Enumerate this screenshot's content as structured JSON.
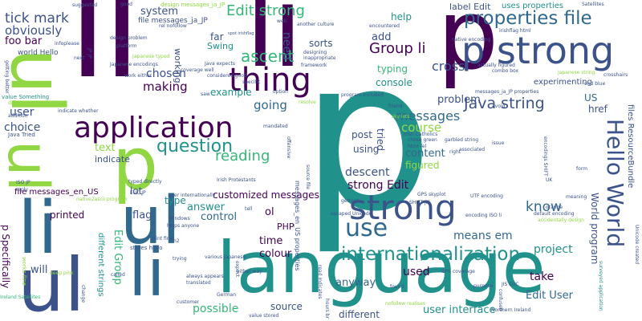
{
  "palette": {
    "background": "#ffffff",
    "dark_purple": "#440154",
    "indigo": "#3b528b",
    "blue": "#31688e",
    "teal": "#21918c",
    "green": "#35b779",
    "lime": "#90d743",
    "yellow": "#fde725"
  },
  "words": {
    "p_big": "p",
    "p_big2": "p",
    "li_top": "li",
    "li_top2": "li",
    "ul_left": "ul",
    "ul_bottom": "ul",
    "li_bottom": "li",
    "li_bottom2": "li",
    "language": "language",
    "application": "application",
    "p_mid": "p",
    "ul_mid": "ul",
    "thing": "thing",
    "strong": "strong",
    "p_strong": "p strong",
    "internationalization": "internationalization",
    "properties_file": "properties file",
    "use": "use",
    "question": "question",
    "edit_strong": "Edit strong",
    "hello_world": "Hello World",
    "ascent": "ascent",
    "group_li": "Group li",
    "java_string": "Java string",
    "reading": "reading",
    "tick_mark": "tick mark",
    "obviously": "obviously",
    "foo_bar": "foo bar",
    "world_hello": "world Hello",
    "user": "user",
    "choice": "choice",
    "making": "making",
    "going": "going",
    "example": "example",
    "chosen": "chosen",
    "system": "system",
    "messages": "messages",
    "course": "course",
    "know": "know",
    "strong_edit": "strong Edit",
    "descent": "descent",
    "means_em": "means em",
    "customized_messages": "customized messages",
    "answer": "answer",
    "control": "control",
    "time": "time",
    "colour": "colour",
    "possible": "possible",
    "source": "source",
    "different": "different",
    "user_interface": "user interface",
    "edit_user": "Edit User",
    "take": "take",
    "project": "project",
    "anyway": "anyway",
    "used": "used",
    "content": "content",
    "figured": "figured",
    "problem": "problem",
    "console": "console",
    "typing": "typing",
    "cross": "cross",
    "add": "add",
    "help": "help",
    "need": "need",
    "sorts": "sorts",
    "far": "far",
    "swing": "Swing",
    "label_edit": "label Edit",
    "uses_properties": "uses properties",
    "experimenting": "experimenting",
    "us": "US",
    "href": "href",
    "text": "text",
    "indicate": "indicate",
    "flag": "flag",
    "lot": "lot",
    "type": "type",
    "ol": "ol",
    "php": "PHP",
    "will": "will",
    "printed": "printed",
    "file_messages": "file messages_en_US",
    "p_specifically": "p Specifically",
    "post": "post",
    "using": "using",
    "tried": "tried",
    "working": "working",
    "edit_group": "Edit Group",
    "different_strings": "different strings",
    "world_program": "World program",
    "files_resourcebundle": "files ResourceBundle",
    "messages_props": "messages_en_US properties",
    "file_messages_ja": "file messages_ja_JP",
    "design_messages_ja": "design messages_ja_JP",
    "works_fine": "works fine",
    "ireland_satellites": "Ireland Satellites",
    "java_tried": "Java Tried",
    "value_something": "value Something",
    "different_colour": "different colour",
    "addition": "addition",
    "suggested": "suggested",
    "good": "good",
    "infoplease": "infoplease",
    "next": "next",
    "japanese_typed": "Japanese typed",
    "japanese_encodings": "Japanese encodings",
    "work_either": "work either",
    "coverage_well": "coverage well",
    "platform": "platform",
    "design_problem": "design problem",
    "spot_irishflag": "spot irishflag",
    "irish_protestants": "Irish Protestants",
    "user_internationally": "user internationally",
    "typed_directly": "typed directly",
    "euc_jp": "EUC JP",
    "iso_jp": "ISO JP",
    "native2ascii_program": "native2ascii program",
    "windows": "Windows",
    "helps_anyone": "helps anyone",
    "print_fine": "print fine",
    "stores_hello": "stores hello",
    "various_japanese": "various Japanese",
    "always_appears": "always appears",
    "translated": "translated",
    "german": "German",
    "customer": "customer",
    "value_stored": "value stored",
    "nofollow_realises": "nofollow realises",
    "escaped_unicode": "escaped Unicode",
    "gps_coverage": "GPS coverage",
    "jis_euc": "JIS EUC",
    "northern_ireland": "Northern Ireland",
    "surveyed_application": "surveyed application",
    "unicode_created": "Unicode created",
    "default_encoding": "default encoding",
    "accidentally_design": "accidentally design",
    "encoding_iso_li": "encoding ISO li",
    "utf_encoding": "UTF encoding",
    "gps_skyplot": "GPS skyplot",
    "garbled_string": "garbled string",
    "html_rel": "html rel",
    "chose_green": "chose green",
    "irish_catholics": "Irish Catholics",
    "encodings_shift": "encodings SHIFT",
    "sky_lots": "sky lots",
    "resolve": "resolve",
    "friend": "friend",
    "avoid": "avoid",
    "program_included": "program included",
    "messages_ja_properties": "messages_ja_JP properties",
    "native_encoding": "native encoding",
    "actually_figured": "actually figured",
    "combo_box": "combo box",
    "japanese_string": "Japanese string",
    "end_blue": "end blue",
    "crosshairs": "crosshairs",
    "encountered": "encountered",
    "irishflag_html": "irishflag html",
    "satellites": "Satellites",
    "uk": "UK",
    "form": "form",
    "orange": "orange",
    "meaning": "meaning",
    "another_culture": "another culture",
    "designing": "designing",
    "inappropriate": "inappropriate",
    "framework": "framework",
    "java_expects": "Java expects",
    "considered_good": "considered good",
    "specific": "specific",
    "option": "option",
    "mandated": "mandated",
    "offensive": "offensive",
    "deep_pink": "deep pink",
    "read_indicates": "read indicates",
    "hours_br": "hours br",
    "purpose": "purpose",
    "found": "found",
    "confused": "confused",
    "issue": "issue",
    "right": "right",
    "associated": "associated",
    "either_way": "either way",
    "tell": "tell",
    "trying": "trying",
    "h2": "h2",
    "reply": "reply",
    "called": "called",
    "change": "change",
    "expect": "expect",
    "getting_better": "getting better",
    "indicate_whether": "indicate whether",
    "rel_nofollow": "rel nofollow",
    "web": "web",
    "saw": "saw",
    "getout": "gettext",
    "shift_jis": "SHIFT JIS",
    "source_file": "source file",
    "jp_jp": "JP JP"
  }
}
